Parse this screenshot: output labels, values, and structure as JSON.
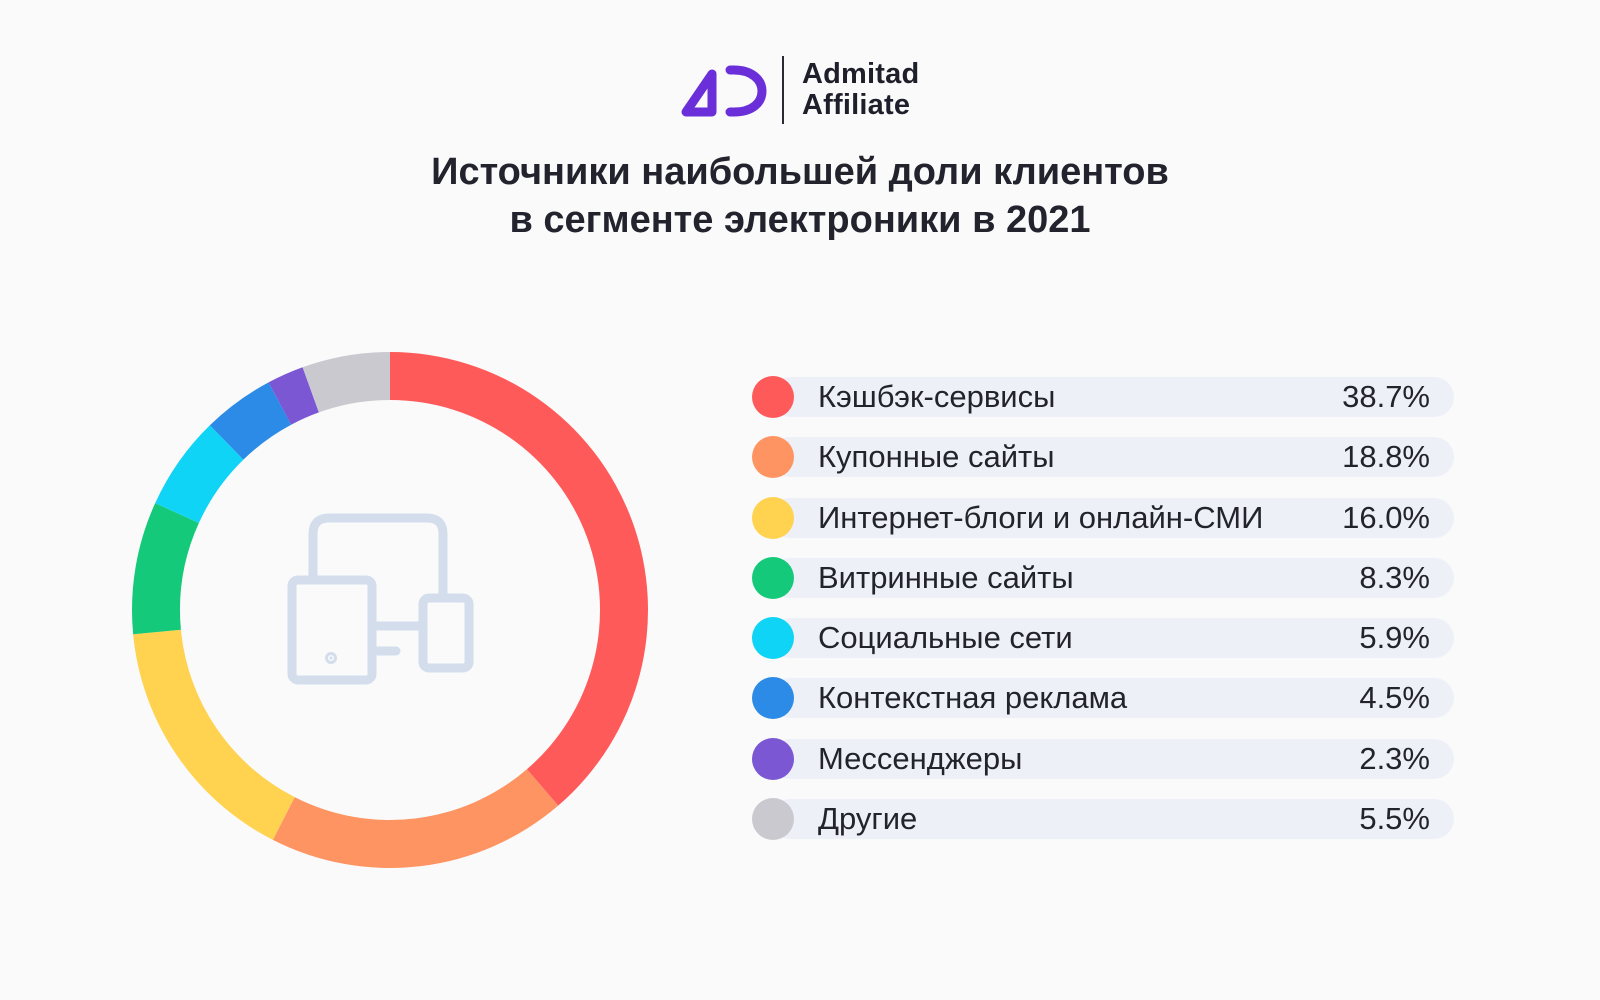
{
  "brand": {
    "name_line1": "Admitad",
    "name_line2": "Affiliate",
    "logo_color": "#6a2fd9"
  },
  "chart_data": {
    "type": "pie",
    "variant": "donut",
    "title_line1": "Источники наибольшей доли клиентов",
    "title_line2": "в сегменте электроники в 2021",
    "center_icon": "devices-icon",
    "series": [
      {
        "label": "Кэшбэк-сервисы",
        "value": 38.7,
        "display": "38.7%",
        "color": "#ff5a5a"
      },
      {
        "label": "Купонные сайты",
        "value": 18.8,
        "display": "18.8%",
        "color": "#ff9463"
      },
      {
        "label": "Интернет-блоги и онлайн-СМИ",
        "value": 16.0,
        "display": "16.0%",
        "color": "#ffd24f"
      },
      {
        "label": "Витринные сайты",
        "value": 8.3,
        "display": "8.3%",
        "color": "#14c97a"
      },
      {
        "label": "Социальные сети",
        "value": 5.9,
        "display": "5.9%",
        "color": "#0fd4f5"
      },
      {
        "label": "Контекстная реклама",
        "value": 4.5,
        "display": "4.5%",
        "color": "#2b8be6"
      },
      {
        "label": "Мессенджеры",
        "value": 2.3,
        "display": "2.3%",
        "color": "#7b57d4"
      },
      {
        "label": "Другие",
        "value": 5.5,
        "display": "5.5%",
        "color": "#c9c9cf"
      }
    ]
  }
}
